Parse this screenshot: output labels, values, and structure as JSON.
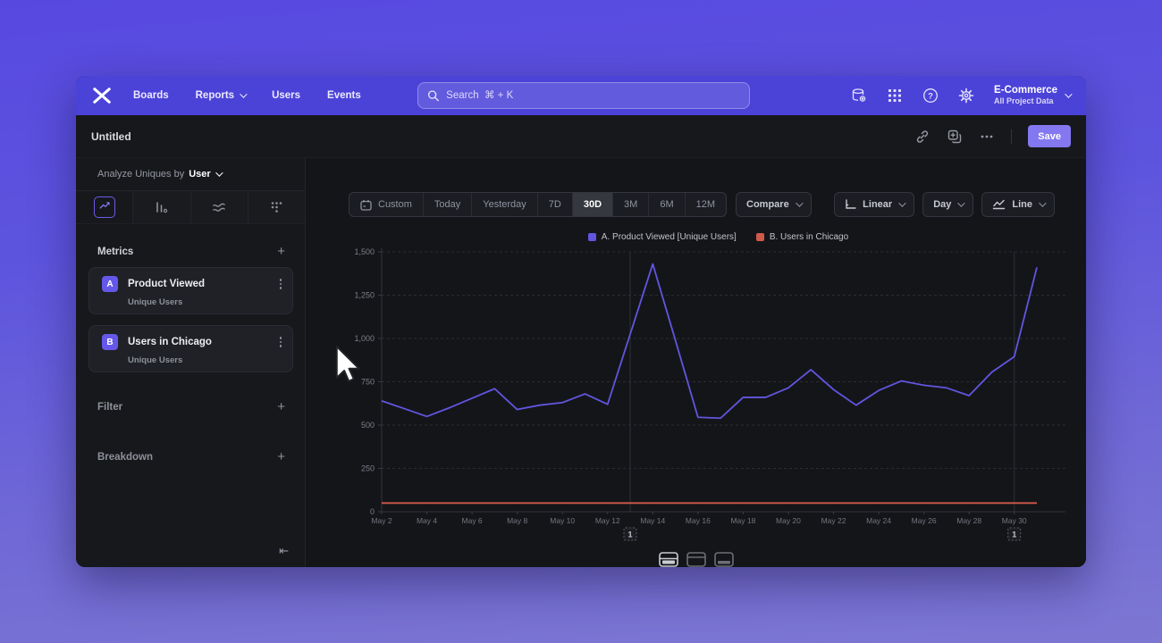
{
  "nav": {
    "items": [
      "Boards",
      "Reports",
      "Users",
      "Events"
    ],
    "search": {
      "placeholder": "Search  ⌘ + K"
    },
    "project": {
      "name": "E-Commerce",
      "scope": "All Project Data"
    }
  },
  "titlebar": {
    "title": "Untitled",
    "save_label": "Save"
  },
  "sidebar": {
    "analyze": {
      "prefix": "Analyze Uniques by",
      "value": "User"
    },
    "chart_types": [
      {
        "name": "insights-line",
        "selected": true
      },
      {
        "name": "bar",
        "selected": false
      },
      {
        "name": "flow",
        "selected": false
      },
      {
        "name": "scatter",
        "selected": false
      }
    ],
    "metrics_label": "Metrics",
    "metrics": [
      {
        "badge": "A",
        "name": "Product Viewed",
        "sub": "Unique Users"
      },
      {
        "badge": "B",
        "name": "Users in Chicago",
        "sub": "Unique Users"
      }
    ],
    "filter_label": "Filter",
    "breakdown_label": "Breakdown"
  },
  "toolbar": {
    "ranges": [
      "Custom",
      "Today",
      "Yesterday",
      "7D",
      "30D",
      "3M",
      "6M",
      "12M"
    ],
    "selected_range": "30D",
    "compare_label": "Compare",
    "scale_label": "Linear",
    "interval_label": "Day",
    "style_label": "Line"
  },
  "chart_data": {
    "type": "line",
    "x": [
      "May 2",
      "May 3",
      "May 4",
      "May 5",
      "May 6",
      "May 7",
      "May 8",
      "May 9",
      "May 10",
      "May 11",
      "May 12",
      "May 13",
      "May 14",
      "May 15",
      "May 16",
      "May 17",
      "May 18",
      "May 19",
      "May 20",
      "May 21",
      "May 22",
      "May 23",
      "May 24",
      "May 25",
      "May 26",
      "May 27",
      "May 28",
      "May 29",
      "May 30",
      "May 31"
    ],
    "series": [
      {
        "name": "A. Product Viewed [Unique Users]",
        "color": "#6156e0",
        "values": [
          640,
          595,
          550,
          600,
          655,
          710,
          590,
          615,
          630,
          680,
          620,
          1025,
          1430,
          990,
          545,
          540,
          660,
          660,
          715,
          820,
          705,
          615,
          700,
          755,
          730,
          715,
          670,
          805,
          895,
          1410
        ]
      },
      {
        "name": "B. Users in Chicago",
        "color": "#cf5a4a",
        "values": [
          50,
          50,
          50,
          50,
          50,
          50,
          50,
          50,
          50,
          50,
          50,
          50,
          50,
          50,
          50,
          50,
          50,
          50,
          50,
          50,
          50,
          50,
          50,
          50,
          50,
          50,
          50,
          50,
          50,
          50
        ]
      }
    ],
    "ylim": [
      0,
      1500
    ],
    "yticks": [
      "0",
      "250",
      "500",
      "750",
      "1,000",
      "1,250",
      "1,500"
    ],
    "x_tick_step": 2,
    "grid": "dashed-horizontal",
    "legend_position": "top-center",
    "annotations": [
      {
        "index": 11,
        "label": "1"
      },
      {
        "index": 28,
        "label": "1"
      }
    ]
  },
  "colors": {
    "nav": "#4b43d8",
    "accent": "#8377f2",
    "save": "#8478f0"
  }
}
